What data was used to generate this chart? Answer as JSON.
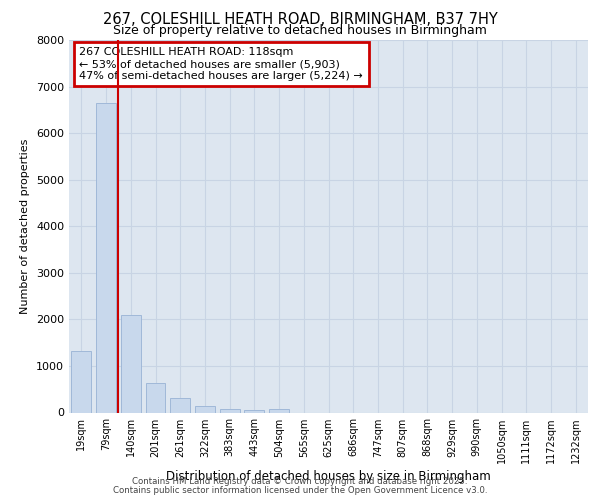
{
  "title": "267, COLESHILL HEATH ROAD, BIRMINGHAM, B37 7HY",
  "subtitle": "Size of property relative to detached houses in Birmingham",
  "xlabel": "Distribution of detached houses by size in Birmingham",
  "ylabel": "Number of detached properties",
  "categories": [
    "19sqm",
    "79sqm",
    "140sqm",
    "201sqm",
    "261sqm",
    "322sqm",
    "383sqm",
    "443sqm",
    "504sqm",
    "565sqm",
    "625sqm",
    "686sqm",
    "747sqm",
    "807sqm",
    "868sqm",
    "929sqm",
    "990sqm",
    "1050sqm",
    "1111sqm",
    "1172sqm",
    "1232sqm"
  ],
  "values": [
    1320,
    6650,
    2090,
    640,
    310,
    150,
    75,
    45,
    70,
    0,
    0,
    0,
    0,
    0,
    0,
    0,
    0,
    0,
    0,
    0,
    0
  ],
  "bar_color": "#c8d8ec",
  "bar_edge_color": "#a0b8d8",
  "vline_color": "#cc0000",
  "vline_pos": 1.5,
  "annotation_text": "267 COLESHILL HEATH ROAD: 118sqm\n← 53% of detached houses are smaller (5,903)\n47% of semi-detached houses are larger (5,224) →",
  "annotation_box_color": "#cc0000",
  "ylim": [
    0,
    8000
  ],
  "yticks": [
    0,
    1000,
    2000,
    3000,
    4000,
    5000,
    6000,
    7000,
    8000
  ],
  "grid_color": "#c8d4e4",
  "bg_color": "#dde6f0",
  "footer1": "Contains HM Land Registry data © Crown copyright and database right 2025.",
  "footer2": "Contains public sector information licensed under the Open Government Licence v3.0."
}
